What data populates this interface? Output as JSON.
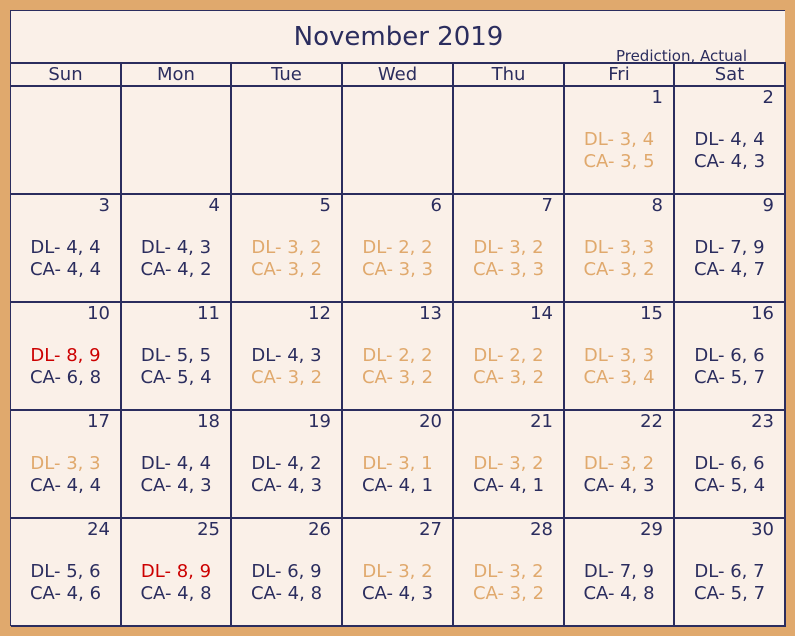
{
  "title": "November 2019",
  "legend": "Prediction, Actual",
  "colors": {
    "navy": "#2b2d5e",
    "orange": "#e0a96d",
    "red": "#cc0000"
  },
  "weekdays": [
    "Sun",
    "Mon",
    "Tue",
    "Wed",
    "Thu",
    "Fri",
    "Sat"
  ],
  "weeks": [
    [
      null,
      null,
      null,
      null,
      null,
      {
        "day": "1",
        "dl": "DL- 3, 4",
        "ca": "CA- 3, 5",
        "dl_color": "orange",
        "ca_color": "orange"
      },
      {
        "day": "2",
        "dl": "DL- 4, 4",
        "ca": "CA- 4, 3",
        "dl_color": "navy",
        "ca_color": "navy"
      }
    ],
    [
      {
        "day": "3",
        "dl": "DL- 4, 4",
        "ca": "CA- 4, 4",
        "dl_color": "navy",
        "ca_color": "navy"
      },
      {
        "day": "4",
        "dl": "DL- 4, 3",
        "ca": "CA- 4, 2",
        "dl_color": "navy",
        "ca_color": "navy"
      },
      {
        "day": "5",
        "dl": "DL- 3, 2",
        "ca": "CA- 3, 2",
        "dl_color": "orange",
        "ca_color": "orange"
      },
      {
        "day": "6",
        "dl": "DL- 2, 2",
        "ca": "CA- 3, 3",
        "dl_color": "orange",
        "ca_color": "orange"
      },
      {
        "day": "7",
        "dl": "DL- 3, 2",
        "ca": "CA- 3, 3",
        "dl_color": "orange",
        "ca_color": "orange"
      },
      {
        "day": "8",
        "dl": "DL- 3, 3",
        "ca": "CA- 3, 2",
        "dl_color": "orange",
        "ca_color": "orange"
      },
      {
        "day": "9",
        "dl": "DL- 7, 9",
        "ca": "CA- 4, 7",
        "dl_color": "navy",
        "ca_color": "navy"
      }
    ],
    [
      {
        "day": "10",
        "dl": "DL- 8, 9",
        "ca": "CA- 6, 8",
        "dl_color": "red",
        "ca_color": "navy"
      },
      {
        "day": "11",
        "dl": "DL- 5, 5",
        "ca": "CA- 5, 4",
        "dl_color": "navy",
        "ca_color": "navy"
      },
      {
        "day": "12",
        "dl": "DL- 4, 3",
        "ca": "CA- 3, 2",
        "dl_color": "navy",
        "ca_color": "orange"
      },
      {
        "day": "13",
        "dl": "DL- 2, 2",
        "ca": "CA- 3, 2",
        "dl_color": "orange",
        "ca_color": "orange"
      },
      {
        "day": "14",
        "dl": "DL- 2, 2",
        "ca": "CA- 3, 2",
        "dl_color": "orange",
        "ca_color": "orange"
      },
      {
        "day": "15",
        "dl": "DL- 3, 3",
        "ca": "CA- 3, 4",
        "dl_color": "orange",
        "ca_color": "orange"
      },
      {
        "day": "16",
        "dl": "DL- 6, 6",
        "ca": "CA- 5, 7",
        "dl_color": "navy",
        "ca_color": "navy"
      }
    ],
    [
      {
        "day": "17",
        "dl": "DL- 3, 3",
        "ca": "CA- 4, 4",
        "dl_color": "orange",
        "ca_color": "navy"
      },
      {
        "day": "18",
        "dl": "DL- 4, 4",
        "ca": "CA- 4, 3",
        "dl_color": "navy",
        "ca_color": "navy"
      },
      {
        "day": "19",
        "dl": "DL- 4, 2",
        "ca": "CA- 4, 3",
        "dl_color": "navy",
        "ca_color": "navy"
      },
      {
        "day": "20",
        "dl": "DL- 3, 1",
        "ca": "CA- 4, 1",
        "dl_color": "orange",
        "ca_color": "navy"
      },
      {
        "day": "21",
        "dl": "DL- 3, 2",
        "ca": "CA- 4, 1",
        "dl_color": "orange",
        "ca_color": "navy"
      },
      {
        "day": "22",
        "dl": "DL- 3, 2",
        "ca": "CA- 4, 3",
        "dl_color": "orange",
        "ca_color": "navy"
      },
      {
        "day": "23",
        "dl": "DL- 6, 6",
        "ca": "CA- 5, 4",
        "dl_color": "navy",
        "ca_color": "navy"
      }
    ],
    [
      {
        "day": "24",
        "dl": "DL- 5, 6",
        "ca": "CA- 4, 6",
        "dl_color": "navy",
        "ca_color": "navy"
      },
      {
        "day": "25",
        "dl": "DL- 8, 9",
        "ca": "CA- 4, 8",
        "dl_color": "red",
        "ca_color": "navy"
      },
      {
        "day": "26",
        "dl": "DL- 6, 9",
        "ca": "CA- 4, 8",
        "dl_color": "navy",
        "ca_color": "navy"
      },
      {
        "day": "27",
        "dl": "DL- 3, 2",
        "ca": "CA- 4, 3",
        "dl_color": "orange",
        "ca_color": "navy"
      },
      {
        "day": "28",
        "dl": "DL- 3, 2",
        "ca": "CA- 3, 2",
        "dl_color": "orange",
        "ca_color": "orange"
      },
      {
        "day": "29",
        "dl": "DL- 7, 9",
        "ca": "CA- 4, 8",
        "dl_color": "navy",
        "ca_color": "navy"
      },
      {
        "day": "30",
        "dl": "DL- 6, 7",
        "ca": "CA- 5, 7",
        "dl_color": "navy",
        "ca_color": "navy"
      }
    ]
  ]
}
